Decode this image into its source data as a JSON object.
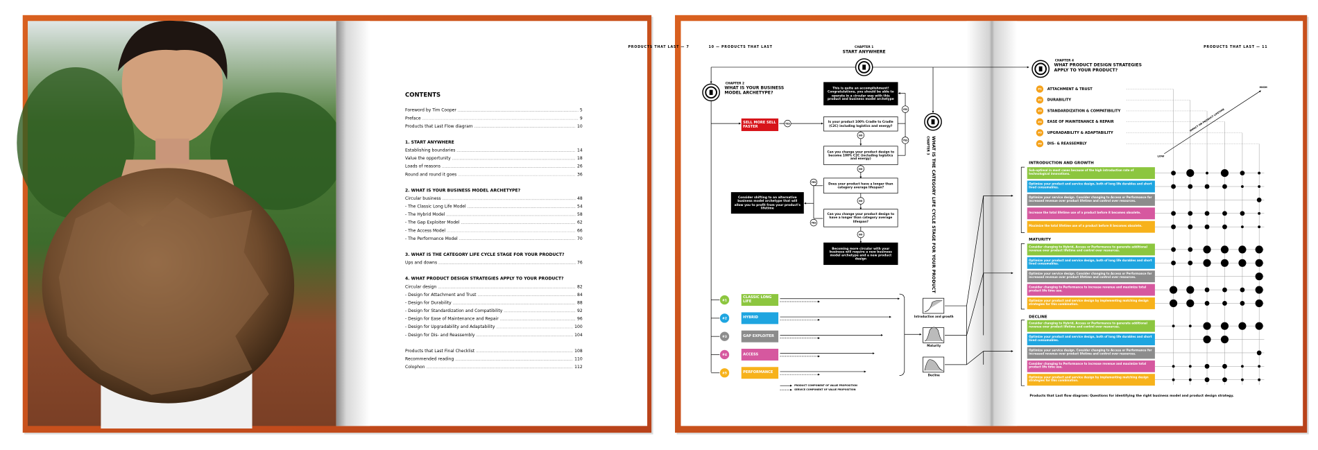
{
  "left_spread": {
    "page_header": "PRODUCTS THAT LAST — 7",
    "toc": {
      "title": "CONTENTS",
      "groups": [
        {
          "entries": [
            {
              "title": "Foreword by Tim Cooper",
              "page": 5
            },
            {
              "title": "Preface",
              "page": 9
            },
            {
              "title": "Products that Last Flow diagram",
              "page": 10
            }
          ]
        },
        {
          "heading": "1. START ANYWHERE",
          "entries": [
            {
              "title": "Establishing boundaries",
              "page": 14
            },
            {
              "title": "Value the opportunity",
              "page": 18
            },
            {
              "title": "Loads of reasons",
              "page": 26
            },
            {
              "title": "Round and round it goes",
              "page": 36
            }
          ]
        },
        {
          "heading": "2. WHAT IS YOUR BUSINESS MODEL ARCHETYPE?",
          "entries": [
            {
              "title": "Circular business",
              "page": 48
            },
            {
              "title": "- The Classic Long Life Model",
              "page": 54
            },
            {
              "title": "- The Hybrid Model",
              "page": 58
            },
            {
              "title": "- The Gap Exploiter Model",
              "page": 62
            },
            {
              "title": "- The Access Model",
              "page": 66
            },
            {
              "title": "- The Performance Model",
              "page": 70
            }
          ]
        },
        {
          "heading": "3. WHAT IS THE CATEGORY LIFE CYCLE STAGE FOR YOUR PRODUCT?",
          "entries": [
            {
              "title": "Ups and downs",
              "page": 76
            }
          ]
        },
        {
          "heading": "4. WHAT PRODUCT DESIGN STRATEGIES APPLY TO YOUR PRODUCT?",
          "entries": [
            {
              "title": "Circular design",
              "page": 82
            },
            {
              "title": "- Design for Attachment and Trust",
              "page": 84
            },
            {
              "title": "- Design for Durability",
              "page": 88
            },
            {
              "title": "- Design for Standardization and Compatibility",
              "page": 92
            },
            {
              "title": "- Design for Ease of Maintenance and Repair",
              "page": 96
            },
            {
              "title": "- Design for Upgradability and Adaptability",
              "page": 100
            },
            {
              "title": "- Design for Dis- and Reassembly",
              "page": 104
            }
          ]
        },
        {
          "entries": [
            {
              "title": "Products that Last Final Checklist",
              "page": 108
            },
            {
              "title": "Recommended reading",
              "page": 110
            },
            {
              "title": "Colophon",
              "page": 112
            }
          ]
        }
      ]
    }
  },
  "right_spread": {
    "left_header": "10 — PRODUCTS THAT LAST",
    "right_header": "PRODUCTS THAT LAST — 11",
    "chapter1": {
      "label": "CHAPTER 1",
      "title": "START ANYWHERE"
    },
    "chapter2": {
      "label": "CHAPTER 2",
      "title": "WHAT IS YOUR BUSINESS MODEL ARCHETYPE?"
    },
    "chapter3": {
      "label": "CHAPTER 3",
      "title": "WHAT IS THE CATEGORY LIFE CYCLE STAGE FOR YOUR PRODUCT"
    },
    "chapter4": {
      "label": "CHAPTER 4",
      "title": "WHAT PRODUCT DESIGN STRATEGIES APPLY TO YOUR PRODUCT?"
    },
    "flow": {
      "accomplishment": "This is quite an accomplishment! Congratulations, you should be able to operate in a circular way with this product and business model archetype",
      "sell_more": "SELL MORE SELL FASTER",
      "q1": "Is your product 100% Cradle to Cradle (C2C) including logistics and energy?",
      "q2": "Can you change your product design to become 100% C2C (including logistics and energy)",
      "q3": "Does your product have a longer than category average lifespan?",
      "q4": "Can you change your product design to have a longer than category average lifespan?",
      "shift": "Consider shifting to an alternative business model archetype that will allow you to profit from your product's lifetime",
      "new_model": "Becoming more circular with your business will require a new business model archetype and a new product design",
      "yes": "YES",
      "no": "NO"
    },
    "models": [
      {
        "number": "#1",
        "name": "CLASSIC LONG LIFE",
        "color": "#8cc63f"
      },
      {
        "number": "#2",
        "name": "HYBRID",
        "color": "#1ea5e0"
      },
      {
        "number": "#3",
        "name": "GAP EXPLOITER",
        "color": "#8c8c8c"
      },
      {
        "number": "#4",
        "name": "ACCESS",
        "color": "#d6589f"
      },
      {
        "number": "#5",
        "name": "PERFORMANCE",
        "color": "#f7b21b"
      }
    ],
    "legend": [
      "PRODUCT COMPONENT OF VALUE PROPOSITION",
      "SERVICE COMPONENT OF VALUE PROPOSITION"
    ],
    "stage_charts": [
      "Introduction and growth",
      "Maturity",
      "Decline"
    ],
    "strategies": [
      {
        "number": "#1",
        "name": "ATTACHMENT & TRUST"
      },
      {
        "number": "#2",
        "name": "DURABILITY"
      },
      {
        "number": "#3",
        "name": "STANDARDIZATION & COMPATIBILITY"
      },
      {
        "number": "#4",
        "name": "EASE OF MAINTENANCE & REPAIR"
      },
      {
        "number": "#5",
        "name": "UPGRADABILITY & ADAPTABILITY"
      },
      {
        "number": "#6",
        "name": "DIS- & REASSEMBLY"
      }
    ],
    "strategy_color": "#f5a21b",
    "impact_axis": {
      "low": "LOW",
      "high": "HIGH",
      "label": "IMPACT ON PRODUCT LIFETIME"
    },
    "stages": [
      {
        "name": "INTRODUCTION AND GROWTH",
        "rows": [
          {
            "text": "Sub-optimal in most cases because of the high introduction rate of technological innovations.",
            "impact": [
              2,
              3,
              1,
              3,
              2,
              1
            ]
          },
          {
            "text": "Optimize your product and service design, both of long life durables and short lived consumables.",
            "impact": [
              2,
              2,
              2,
              2,
              1,
              1
            ]
          },
          {
            "text": "Optimize your service design. Consider changing to Access or Performance for increased revenue over product lifetime and control over resources.",
            "impact": [
              0,
              0,
              0,
              0,
              0,
              2
            ]
          },
          {
            "text": "Increase the total lifetime use of a product before it becomes obsolete.",
            "impact": [
              2,
              2,
              2,
              2,
              2,
              1
            ]
          },
          {
            "text": "Maximize the total lifetime use of a product before it becomes obsolete.",
            "impact": [
              2,
              2,
              2,
              2,
              1,
              1
            ]
          }
        ]
      },
      {
        "name": "MATURITY",
        "rows": [
          {
            "text": "Consider changing to Hybrid, Access or Performance to generate additional revenue over product lifetime and control over resources.",
            "impact": [
              2,
              2,
              3,
              3,
              3,
              3
            ]
          },
          {
            "text": "Optimize your product and service design, both of long life durables and short lived consumables.",
            "impact": [
              2,
              2,
              3,
              3,
              3,
              3
            ]
          },
          {
            "text": "Optimize your service design. Consider changing to Access or Performance for increased revenue over product lifetime and control over resources.",
            "impact": [
              0,
              0,
              0,
              0,
              0,
              3
            ]
          },
          {
            "text": "Consider changing to Performance to increase revenue and maximize total product life time use.",
            "impact": [
              3,
              3,
              2,
              2,
              2,
              3
            ]
          },
          {
            "text": "Optimize your product and service design by implementing matching design strategies for this combination.",
            "impact": [
              3,
              3,
              2,
              2,
              2,
              3
            ]
          }
        ]
      },
      {
        "name": "DECLINE",
        "rows": [
          {
            "text": "Consider changing to Hybrid, Access or Performance to generate additional revenue over product lifetime and control over resources.",
            "impact": [
              1,
              1,
              3,
              3,
              3,
              3
            ]
          },
          {
            "text": "Optimize your product and service design, both of long life durables and short lived consumables.",
            "impact": [
              0,
              0,
              3,
              3,
              0,
              0
            ]
          },
          {
            "text": "Optimize your service design. Consider changing to Access or Performance for increased revenue over product lifetime and control over resources.",
            "impact": [
              0,
              0,
              0,
              0,
              0,
              2
            ]
          },
          {
            "text": "Consider changing to Performance to increase revenue and maximize total product life time use.",
            "impact": [
              1,
              1,
              2,
              2,
              1,
              1
            ]
          },
          {
            "text": "Optimize your product and service design by implementing matching design strategies for this combination.",
            "impact": [
              1,
              1,
              2,
              2,
              1,
              1
            ]
          }
        ]
      }
    ],
    "caption": "Products that Last flow diagram: Questions for identifying the right business model and product design strategy."
  }
}
